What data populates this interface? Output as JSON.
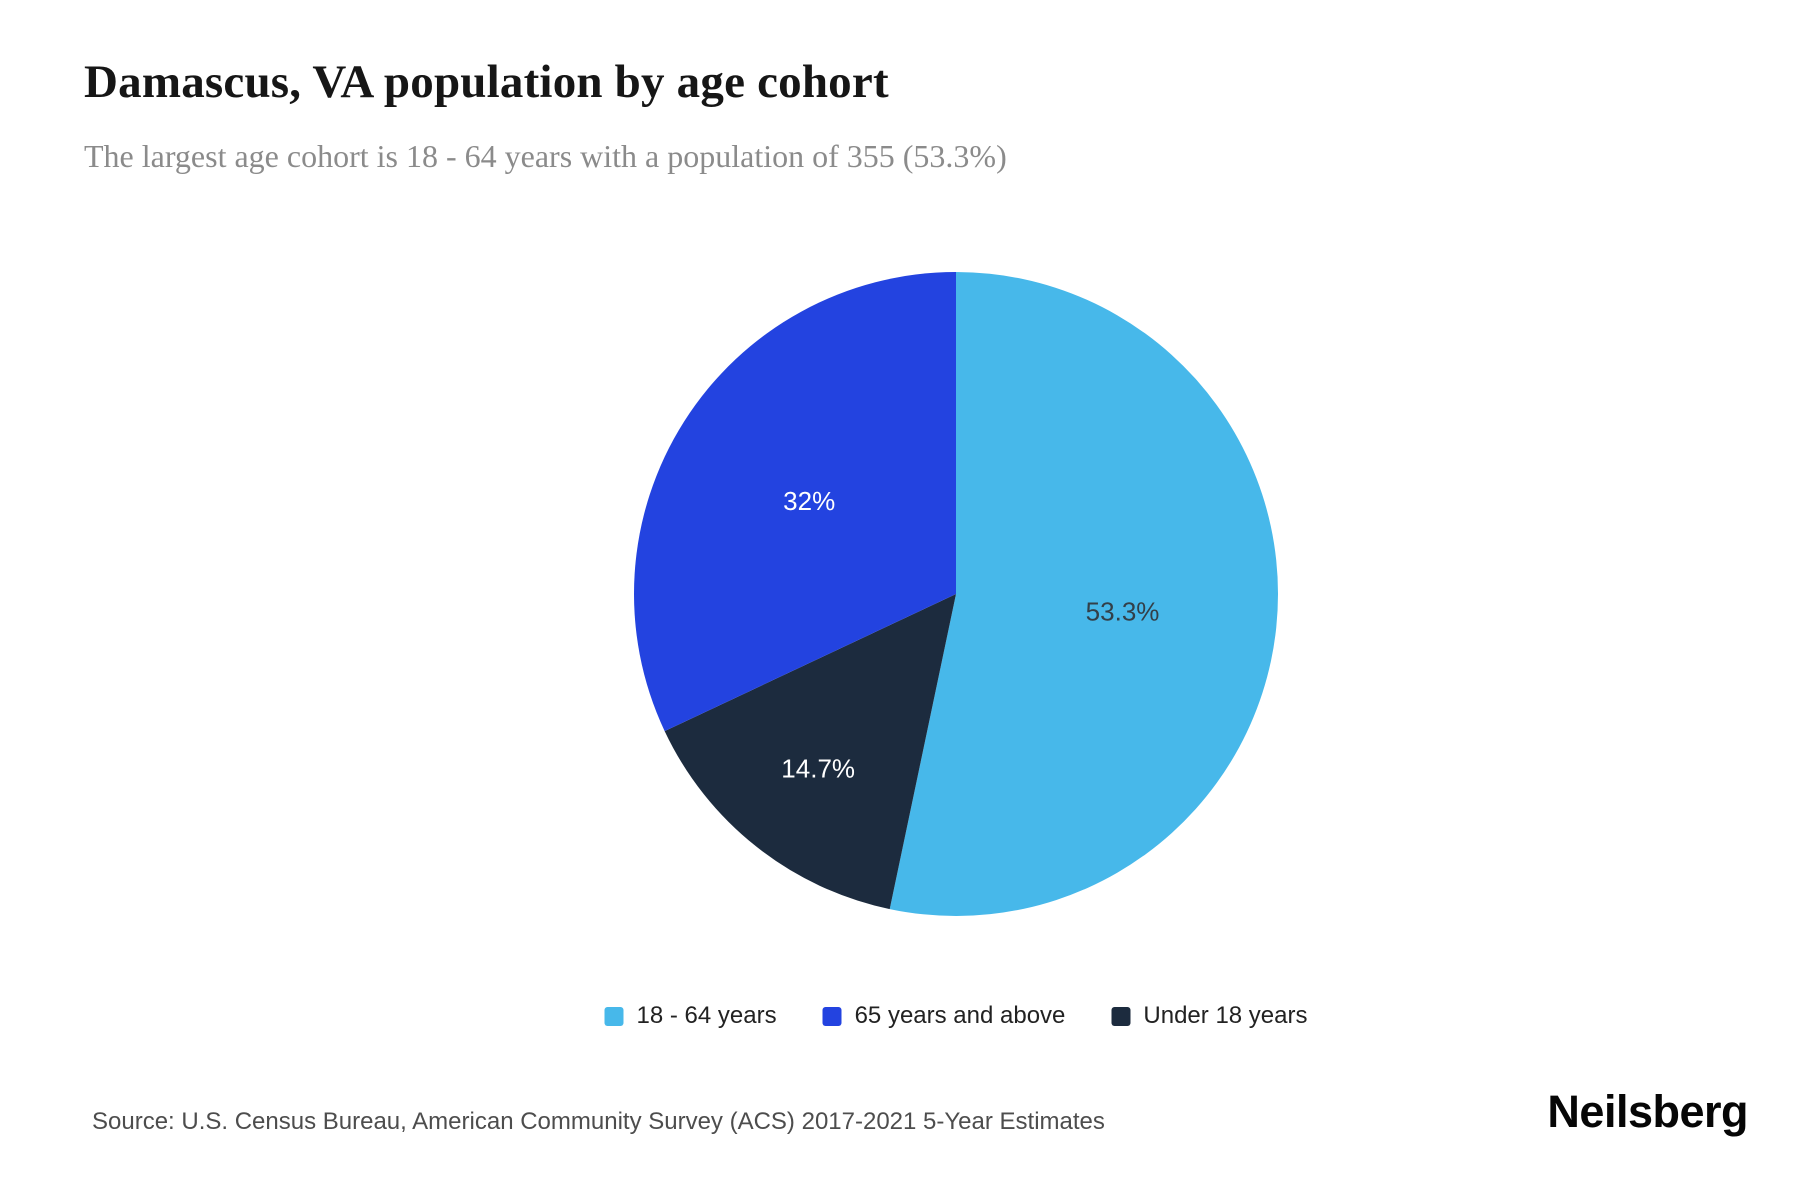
{
  "header": {
    "title": "Damascus, VA population by age cohort",
    "subtitle": "The largest age cohort is 18 - 64 years with a population of 355 (53.3%)"
  },
  "chart_data": {
    "type": "pie",
    "title": "Damascus, VA population by age cohort",
    "unit": "percent",
    "direction": "clockwise",
    "start_angle_deg": 0,
    "slices": [
      {
        "label": "18 - 64 years",
        "value": 53.3,
        "display": "53.3%",
        "population": 355,
        "color": "#47b8ea",
        "text_color": "#333f48",
        "label_radius_frac": 0.52
      },
      {
        "label": "Under 18 years",
        "value": 14.7,
        "display": "14.7%",
        "color": "#1c2b3e",
        "text_color": "#ffffff",
        "label_radius_frac": 0.69
      },
      {
        "label": "65 years and above",
        "value": 32,
        "display": "32%",
        "color": "#2343e0",
        "text_color": "#ffffff",
        "label_radius_frac": 0.54
      }
    ],
    "legend": [
      {
        "label": "18 - 64 years",
        "color": "#47b8ea"
      },
      {
        "label": "65 years and above",
        "color": "#2343e0"
      },
      {
        "label": "Under 18 years",
        "color": "#1c2b3e"
      }
    ],
    "legend_position": "bottom"
  },
  "footer": {
    "source": "Source: U.S. Census Bureau, American Community Survey (ACS) 2017-2021 5-Year Estimates",
    "brand": "Neilsberg"
  }
}
